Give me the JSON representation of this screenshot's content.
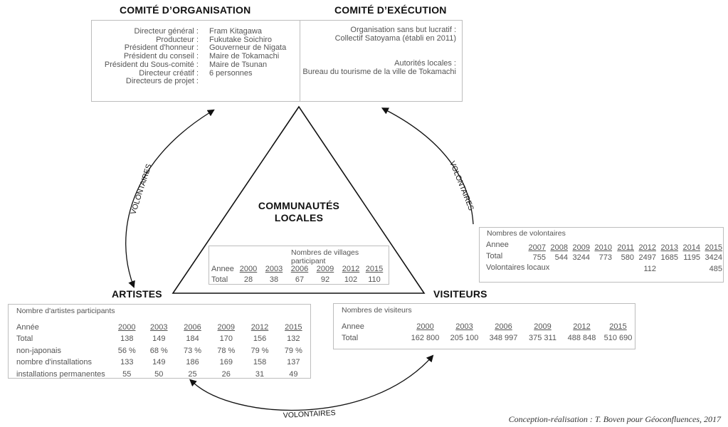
{
  "headings": {
    "organisation": "COMITÉ D’ORGANISATION",
    "execution": "COMITÉ D’EXÉCUTION",
    "communautes_line1": "COMMUNAUTÉS",
    "communautes_line2": "LOCALES",
    "artistes": "ARTISTES",
    "visiteurs": "VISITEURS"
  },
  "organisation": {
    "labels": [
      "Directeur général :",
      "Producteur :",
      "Président d'honneur :",
      "Président du conseil :",
      "Président du Sous-comité :",
      "Directeur créatif :",
      "Directeurs de projet :"
    ],
    "values": [
      "Fram Kitagawa",
      "Fukutake Soichiro",
      "Gouverneur de Nigata",
      "Maire de Tokamachi",
      "Maire de Tsunan",
      "",
      "6 personnes"
    ]
  },
  "execution": {
    "org_label": "Organisation sans but lucratif :",
    "org_value": "Collectif Satoyama (établi en 2011)",
    "auth_label": "Autorités locales :",
    "auth_value": "Bureau du tourisme de la ville de Tokamachi"
  },
  "villages": {
    "title": "Nombres de villages participant",
    "row_head": "Annee",
    "years": [
      "2000",
      "2003",
      "2006",
      "2009",
      "2012",
      "2015"
    ],
    "total_label": "Total",
    "total": [
      "28",
      "38",
      "67",
      "92",
      "102",
      "110"
    ]
  },
  "artistes": {
    "title": "Nombre d'artistes participants",
    "row_head": "Année",
    "years": [
      "2000",
      "2003",
      "2006",
      "2009",
      "2012",
      "2015"
    ],
    "rows": [
      {
        "label": "Total",
        "values": [
          "138",
          "149",
          "184",
          "170",
          "156",
          "132"
        ]
      },
      {
        "label": "non-japonais",
        "values": [
          "56 %",
          "68 %",
          "73 %",
          "78 %",
          "79 %",
          "79 %"
        ]
      },
      {
        "label": "nombre d'installations",
        "values": [
          "133",
          "149",
          "186",
          "169",
          "158",
          "137"
        ]
      },
      {
        "label": "installations permanentes",
        "values": [
          "55",
          "50",
          "25",
          "26",
          "31",
          "49"
        ]
      }
    ]
  },
  "visiteurs": {
    "title": "Nombres de visiteurs",
    "row_head": "Annee",
    "years": [
      "2000",
      "2003",
      "2006",
      "2009",
      "2012",
      "2015"
    ],
    "total_label": "Total",
    "total": [
      "162 800",
      "205 100",
      "348 997",
      "375 311",
      "488 848",
      "510 690"
    ]
  },
  "volontaires": {
    "title": "Nombres de volontaires",
    "row_head": "Annee",
    "years": [
      "2007",
      "2008",
      "2009",
      "2010",
      "2011",
      "2012",
      "2013",
      "2014",
      "2015"
    ],
    "total_label": "Total",
    "total": [
      "755",
      "544",
      "3244",
      "773",
      "580",
      "2497",
      "1685",
      "1195",
      "3424"
    ],
    "locaux_label": "Volontaires locaux",
    "locaux": [
      "",
      "",
      "",
      "",
      "",
      "112",
      "",
      "",
      "485"
    ]
  },
  "arrows": {
    "left": "VOLONTAIRES",
    "right": "VOLONTAIRES",
    "bottom": "VOLONTAIRES"
  },
  "credit": "Conception-réalisation : T. Boven pour Géoconfluences, 2017"
}
